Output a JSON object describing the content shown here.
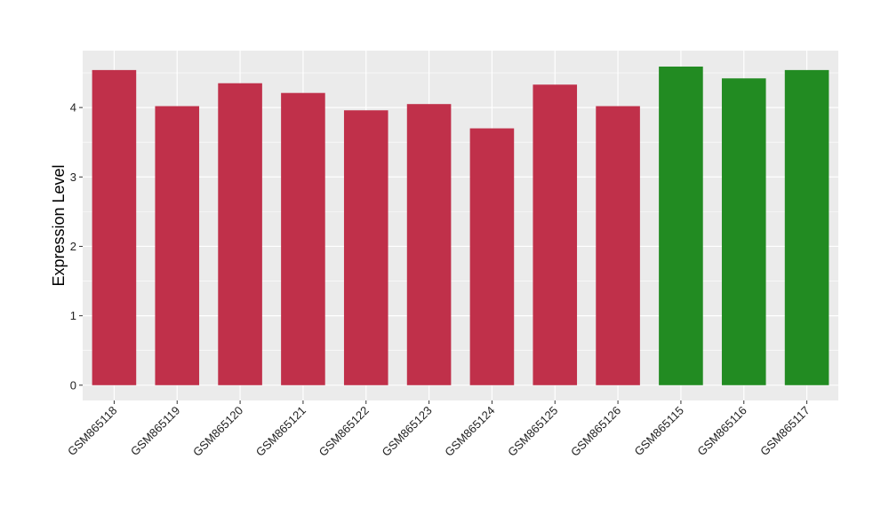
{
  "chart_data": {
    "type": "bar",
    "title": "",
    "xlabel": "",
    "ylabel": "Expression Level",
    "categories": [
      "GSM865118",
      "GSM865119",
      "GSM865120",
      "GSM865121",
      "GSM865122",
      "GSM865123",
      "GSM865124",
      "GSM865125",
      "GSM865126",
      "GSM865115",
      "GSM865116",
      "GSM865117"
    ],
    "values": [
      4.54,
      4.02,
      4.35,
      4.21,
      3.96,
      4.05,
      3.7,
      4.33,
      4.02,
      4.59,
      4.42,
      4.54
    ],
    "bar_colors": [
      "#c0304a",
      "#c0304a",
      "#c0304a",
      "#c0304a",
      "#c0304a",
      "#c0304a",
      "#c0304a",
      "#c0304a",
      "#c0304a",
      "#228b22",
      "#228b22",
      "#228b22"
    ],
    "yticks": [
      0,
      1,
      2,
      3,
      4
    ],
    "ylim": [
      -0.22,
      4.82
    ],
    "grid": true,
    "legend": "none",
    "panel_color": "#ebebeb",
    "gridline_color": "#ffffff"
  }
}
